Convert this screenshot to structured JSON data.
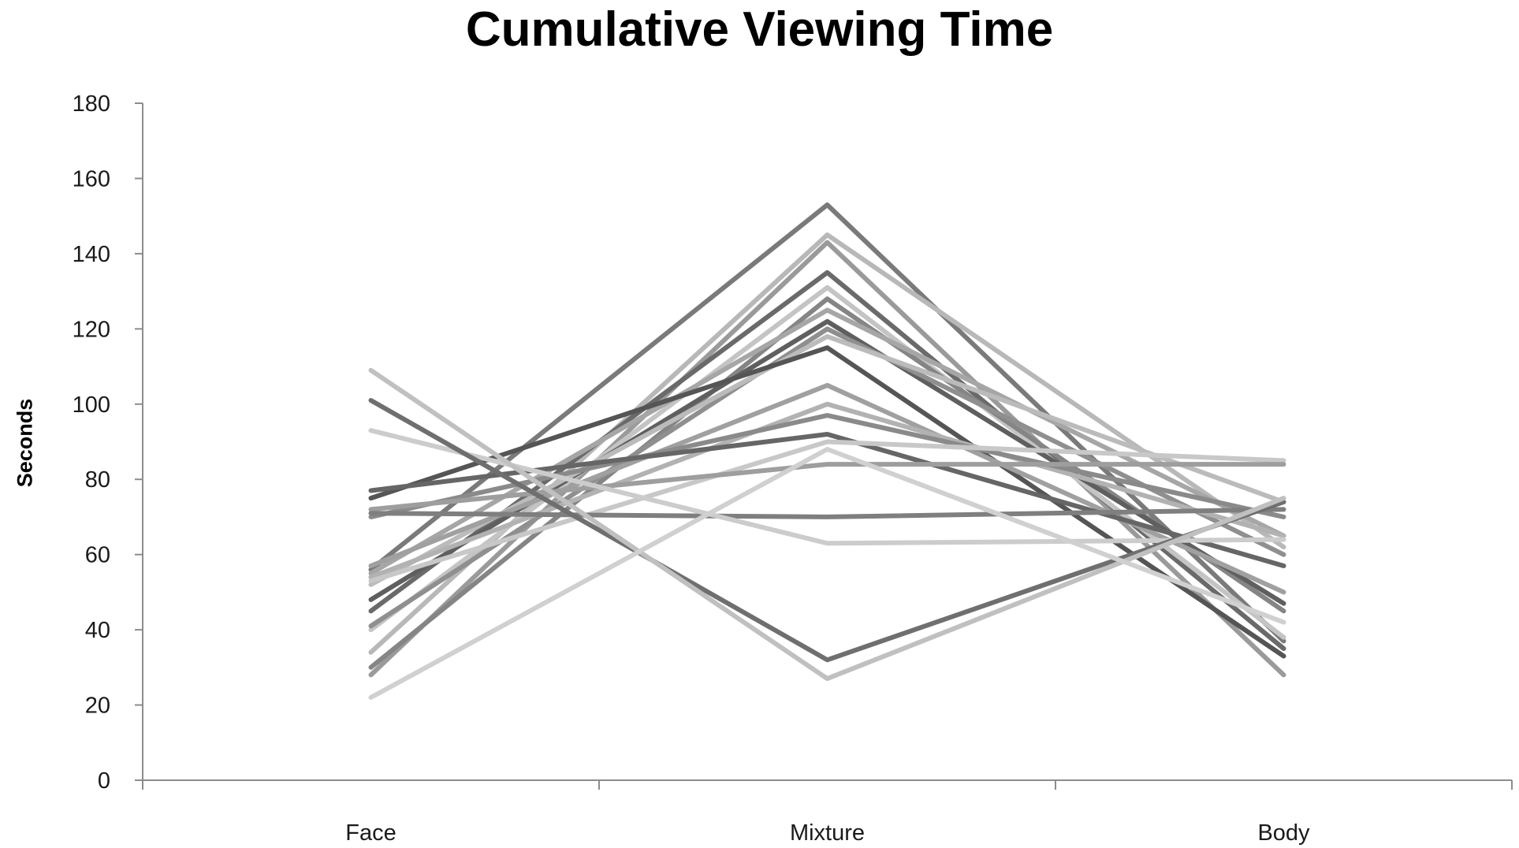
{
  "chart_data": {
    "type": "line",
    "title": "Cumulative Viewing Time",
    "xlabel": "",
    "ylabel": "Seconds",
    "categories": [
      "Face",
      "Mixture",
      "Body"
    ],
    "ylim": [
      0,
      180
    ],
    "yticks": [
      0,
      20,
      40,
      60,
      80,
      100,
      120,
      140,
      160,
      180
    ],
    "grid": false,
    "legend": "none",
    "series": [
      {
        "values": [
          56,
          153,
          37
        ],
        "color": "#7a7a7a"
      },
      {
        "values": [
          34,
          145,
          62
        ],
        "color": "#b8b8b8"
      },
      {
        "values": [
          28,
          143,
          28
        ],
        "color": "#9a9a9a"
      },
      {
        "values": [
          45,
          135,
          35
        ],
        "color": "#6a6a6a"
      },
      {
        "values": [
          40,
          131,
          38
        ],
        "color": "#c4c4c4"
      },
      {
        "values": [
          30,
          128,
          45
        ],
        "color": "#858585"
      },
      {
        "values": [
          55,
          125,
          65
        ],
        "color": "#a6a6a6"
      },
      {
        "values": [
          48,
          122,
          47
        ],
        "color": "#5f5f5f"
      },
      {
        "values": [
          41,
          120,
          60
        ],
        "color": "#8f8f8f"
      },
      {
        "values": [
          52,
          118,
          74
        ],
        "color": "#bbbbbb"
      },
      {
        "values": [
          75,
          115,
          33
        ],
        "color": "#555555"
      },
      {
        "values": [
          57,
          105,
          50
        ],
        "color": "#a0a0a0"
      },
      {
        "values": [
          54,
          100,
          65
        ],
        "color": "#b2b2b2"
      },
      {
        "values": [
          70,
          97,
          70
        ],
        "color": "#8a8a8a"
      },
      {
        "values": [
          77,
          92,
          57
        ],
        "color": "#666666"
      },
      {
        "values": [
          53,
          90,
          85
        ],
        "color": "#c8c8c8"
      },
      {
        "values": [
          72,
          84,
          84
        ],
        "color": "#9e9e9e"
      },
      {
        "values": [
          71,
          70,
          72
        ],
        "color": "#7f7f7f"
      },
      {
        "values": [
          93,
          63,
          64
        ],
        "color": "#cccccc"
      },
      {
        "values": [
          101,
          32,
          74
        ],
        "color": "#6f6f6f"
      },
      {
        "values": [
          109,
          27,
          75
        ],
        "color": "#c0c0c0"
      },
      {
        "values": [
          22,
          88,
          42
        ],
        "color": "#d0d0d0"
      }
    ]
  }
}
